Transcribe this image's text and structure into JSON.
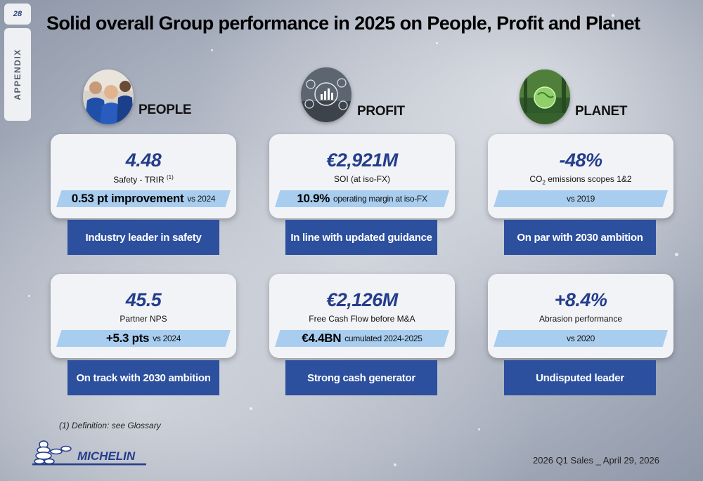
{
  "page": {
    "number": "28",
    "section_tab": "APPENDIX",
    "title": "Solid overall Group performance in 2025 on People, Profit and Planet"
  },
  "pillars": [
    {
      "label": "PEOPLE",
      "cards": [
        {
          "metric": "4.48",
          "sub_text": "Safety - TRIR",
          "sub_sup": "(1)",
          "band_bold": "0.53 pt improvement",
          "band_small": "vs 2024",
          "button": "Industry leader in safety"
        },
        {
          "metric": "45.5",
          "sub_text": "Partner NPS",
          "band_bold": "+5.3 pts",
          "band_small": "vs 2024",
          "button": "On track with 2030 ambition"
        }
      ]
    },
    {
      "label": "PROFIT",
      "cards": [
        {
          "metric": "€2,921M",
          "sub_text": "SOI (at iso-FX)",
          "band_bold": "10.9%",
          "band_small": "operating margin at iso-FX",
          "button": "In line with updated guidance"
        },
        {
          "metric": "€2,126M",
          "sub_text": "Free Cash Flow before M&A",
          "band_bold": "€4.4BN",
          "band_small": "cumulated 2024-2025",
          "button": "Strong cash generator"
        }
      ]
    },
    {
      "label": "PLANET",
      "cards": [
        {
          "metric": "-48%",
          "sub_pre": "CO",
          "sub_subscript": "2",
          "sub_post": " emissions scopes 1&2",
          "band_small": "vs 2019",
          "button": "On par with 2030 ambition"
        },
        {
          "metric": "+8.4%",
          "sub_text": "Abrasion performance",
          "band_small": "vs 2020",
          "button": "Undisputed leader"
        }
      ]
    }
  ],
  "footnote": "(1)  Definition: see Glossary",
  "logo_text": "MICHELIN",
  "footer": "2026 Q1 Sales _ April 29, 2026",
  "colors": {
    "metric_blue": "#233d8c",
    "button_blue": "#2c4f9e",
    "band_light_blue": "#a8cdef",
    "card_bg": "#f2f3f6"
  }
}
